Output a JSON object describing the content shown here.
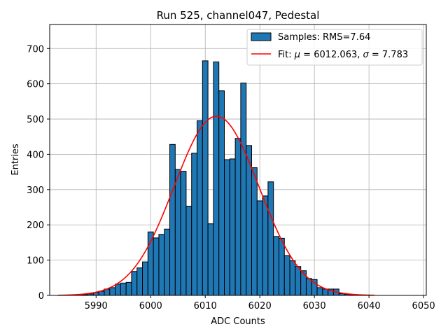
{
  "chart_data": {
    "type": "bar",
    "title": "Run 525, channel047, Pedestal",
    "xlabel": "ADC Counts",
    "ylabel": "Entries",
    "xlim": [
      5981.5,
      6050.5
    ],
    "ylim": [
      0,
      768
    ],
    "xticks": [
      5990,
      6000,
      6010,
      6020,
      6030,
      6040,
      6050
    ],
    "yticks": [
      0,
      100,
      200,
      300,
      400,
      500,
      600,
      700
    ],
    "grid": true,
    "legend_position": "top-right",
    "histogram": {
      "name": "Samples: RMS=7.64",
      "color": "#1f77b4",
      "edgecolor": "#000000",
      "bin_width": 1,
      "bin_centers": [
        5986,
        5987,
        5988,
        5989,
        5990,
        5991,
        5992,
        5993,
        5994,
        5995,
        5996,
        5997,
        5998,
        5999,
        6000,
        6001,
        6002,
        6003,
        6004,
        6005,
        6006,
        6007,
        6008,
        6009,
        6010,
        6011,
        6012,
        6013,
        6014,
        6015,
        6016,
        6017,
        6018,
        6019,
        6020,
        6021,
        6022,
        6023,
        6024,
        6025,
        6026,
        6027,
        6028,
        6029,
        6030,
        6031,
        6032,
        6033,
        6034,
        6035,
        6036,
        6037,
        6038,
        6039,
        6040
      ],
      "values": [
        1,
        1,
        2,
        4,
        8,
        12,
        18,
        22,
        32,
        35,
        37,
        68,
        78,
        95,
        180,
        163,
        173,
        188,
        428,
        357,
        352,
        253,
        403,
        495,
        665,
        203,
        662,
        580,
        385,
        387,
        445,
        602,
        425,
        362,
        268,
        282,
        322,
        167,
        162,
        113,
        98,
        82,
        70,
        48,
        45,
        22,
        18,
        18,
        18,
        5,
        3,
        2,
        1,
        1,
        0
      ]
    },
    "fit": {
      "name": "Fit: μ = 6012.063, σ = 7.783",
      "label_prefix": "Fit: ",
      "label_mu": "μ",
      "label_mu_value": " = 6012.063, ",
      "label_sigma": "σ",
      "label_sigma_value": " = 7.783",
      "color": "#ff0000",
      "mu": 6012.063,
      "sigma": 7.783,
      "amplitude": 508,
      "x_range": [
        5983,
        6041
      ]
    }
  }
}
